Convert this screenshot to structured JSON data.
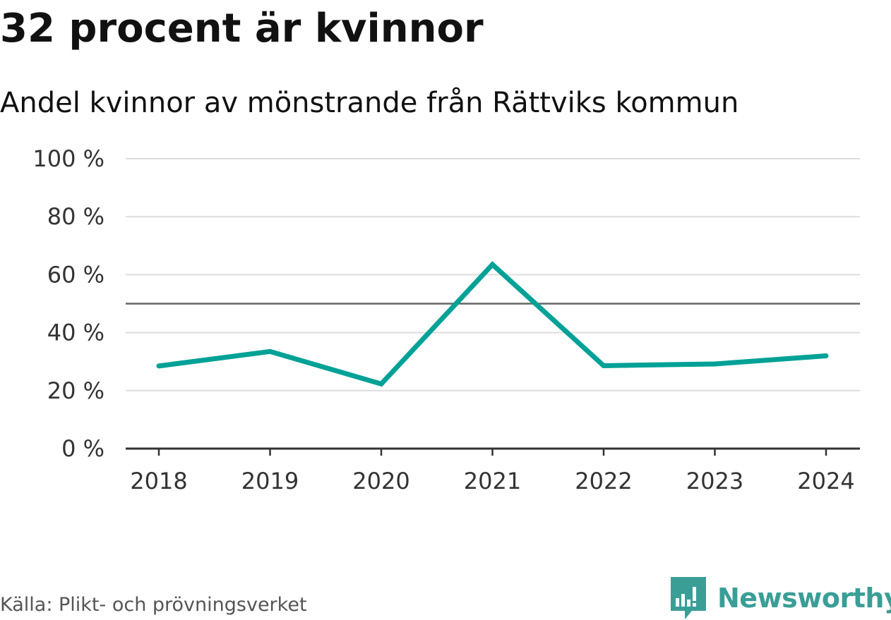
{
  "header": {
    "title": "32 procent är kvinnor",
    "subtitle": "Andel kvinnor av mönstrande från Rättviks kommun"
  },
  "chart_data": {
    "type": "line",
    "title": "32 procent är kvinnor",
    "subtitle": "Andel kvinnor av mönstrande från Rättviks kommun",
    "xlabel": "",
    "ylabel": "",
    "categories": [
      "2018",
      "2019",
      "2020",
      "2021",
      "2022",
      "2023",
      "2024"
    ],
    "series": [
      {
        "name": "Andel kvinnor",
        "values": [
          28.5,
          33.5,
          22.3,
          63.5,
          28.6,
          29.2,
          32.0
        ],
        "color": "#00a196"
      }
    ],
    "ylim": [
      0,
      100
    ],
    "yticks": [
      0,
      20,
      40,
      60,
      80,
      100
    ],
    "ytick_labels": [
      "0 %",
      "20 %",
      "40 %",
      "60 %",
      "80 %",
      "100 %"
    ],
    "reference_line": {
      "value": 50,
      "color": "#666666"
    },
    "grid": true,
    "gridline_color": "#dddddd",
    "axis_color": "#333333"
  },
  "footer": {
    "source": "Källa: Plikt- och prövningsverket",
    "brand": "Newsworthy",
    "brand_color": "#3a9e96",
    "brand_icon": "newsworthy-logo-icon"
  }
}
